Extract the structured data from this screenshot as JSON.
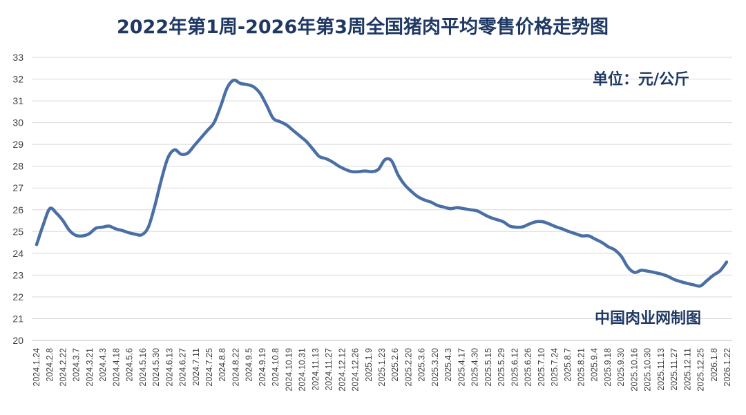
{
  "chart_data": {
    "type": "line",
    "title": "2022年第1周-2026年第3周全国猪肉平均零售价格走势图",
    "unit": "单位：元/公斤",
    "source": "中国肉业网制图",
    "ylim": [
      20,
      33
    ],
    "yticks": [
      20,
      21,
      22,
      23,
      24,
      25,
      26,
      27,
      28,
      29,
      30,
      31,
      32,
      33
    ],
    "grid": true,
    "line_color": "#4a6fa5",
    "x_tick_labels": [
      "2024.1.24",
      "2024.2.8",
      "2024.2.22",
      "2024.3.7",
      "2024.3.21",
      "2024.4.3",
      "2024.4.18",
      "2024.5.6",
      "2024.5.16",
      "2024.5.30",
      "2024.6.13",
      "2024.6.27",
      "2024.7.11",
      "2024.7.25",
      "2024.8.8",
      "2024.8.22",
      "2024.9.5",
      "2024.9.19",
      "2024.10.8",
      "2024.10.19",
      "2024.10.31",
      "2024.11.13",
      "2024.11.27",
      "2024.12.12",
      "2024.12.26",
      "2025.1.9",
      "2025.1.23",
      "2025.2.6",
      "2025.2.20",
      "2025.3.6",
      "2025.3.20",
      "2025.4.3",
      "2025.4.17",
      "2025.4.30",
      "2025.5.15",
      "2025.5.29",
      "2025.6.12",
      "2025.6.26",
      "2025.7.10",
      "2025.7.24",
      "2025.8.7",
      "2025.8.21",
      "2025.9.4",
      "2025.9.18",
      "2025.9.30",
      "2025.10.16",
      "2025.10.30",
      "2025.11.13",
      "2025.11.27",
      "2025.12.11",
      "2025.12.25",
      "2026.1.8",
      "2026.1.22"
    ],
    "series": [
      {
        "name": "",
        "values": [
          24.4,
          25.3,
          26.05,
          25.85,
          25.5,
          25.05,
          24.82,
          24.8,
          24.9,
          25.15,
          25.2,
          25.25,
          25.13,
          25.05,
          24.95,
          24.88,
          24.85,
          25.2,
          26.2,
          27.4,
          28.4,
          28.75,
          28.55,
          28.6,
          28.95,
          29.3,
          29.65,
          30.0,
          30.75,
          31.6,
          31.95,
          31.8,
          31.75,
          31.65,
          31.35,
          30.8,
          30.2,
          30.05,
          29.9,
          29.65,
          29.4,
          29.15,
          28.8,
          28.45,
          28.35,
          28.2,
          28.0,
          27.85,
          27.75,
          27.75,
          27.78,
          27.75,
          27.85,
          28.3,
          28.25,
          27.6,
          27.15,
          26.85,
          26.6,
          26.45,
          26.35,
          26.2,
          26.12,
          26.05,
          26.1,
          26.05,
          26.0,
          25.95,
          25.8,
          25.65,
          25.55,
          25.45,
          25.25,
          25.2,
          25.22,
          25.35,
          25.45,
          25.45,
          25.35,
          25.22,
          25.12,
          25.0,
          24.9,
          24.8,
          24.8,
          24.65,
          24.5,
          24.3,
          24.15,
          23.85,
          23.35,
          23.12,
          23.22,
          23.18,
          23.12,
          23.05,
          22.95,
          22.8,
          22.7,
          22.62,
          22.55,
          22.5,
          22.75,
          23.0,
          23.2,
          23.6
        ]
      }
    ]
  }
}
